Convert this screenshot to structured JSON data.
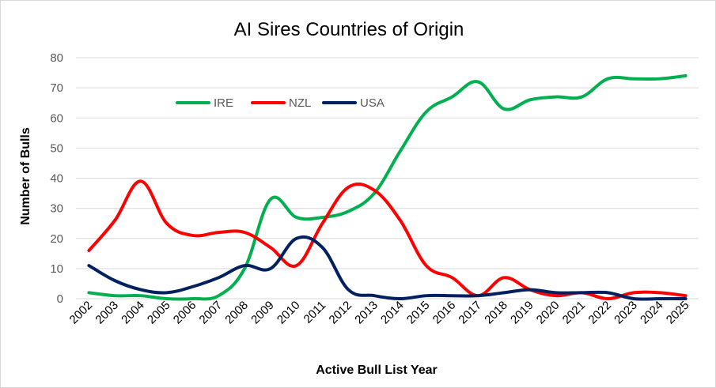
{
  "chart_data": {
    "type": "line",
    "title": "AI Sires Countries of Origin",
    "xlabel": "Active Bull List Year",
    "ylabel": "Number of Bulls",
    "ylim": [
      0,
      80
    ],
    "yticks": [
      0,
      10,
      20,
      30,
      40,
      50,
      60,
      70,
      80
    ],
    "grid": "horizontal",
    "legend_position": "top-left inside plot",
    "categories": [
      "2002",
      "2003",
      "2004",
      "2005",
      "2006",
      "2007",
      "2008",
      "2009",
      "2010",
      "2011",
      "2012",
      "2013",
      "2014",
      "2015",
      "2016",
      "2017",
      "2018",
      "2019",
      "2020",
      "2021",
      "2022",
      "2023",
      "2024",
      "2025"
    ],
    "series": [
      {
        "name": "IRE",
        "color": "#00b050",
        "values": [
          2,
          1,
          1,
          0,
          0,
          1,
          10,
          33,
          27,
          27,
          29,
          35,
          49,
          62,
          67,
          72,
          63,
          66,
          67,
          67,
          73,
          73,
          73,
          74
        ]
      },
      {
        "name": "NZL",
        "color": "#ff0000",
        "values": [
          16,
          26,
          39,
          25,
          21,
          22,
          22,
          17,
          11,
          25,
          37,
          36,
          26,
          11,
          7,
          1,
          7,
          3,
          1,
          2,
          0,
          2,
          2,
          1
        ]
      },
      {
        "name": "USA",
        "color": "#002060",
        "values": [
          11,
          6,
          3,
          2,
          4,
          7,
          11,
          10,
          20,
          17,
          3,
          1,
          0,
          1,
          1,
          1,
          2,
          3,
          2,
          2,
          2,
          0,
          0,
          0
        ]
      }
    ]
  }
}
